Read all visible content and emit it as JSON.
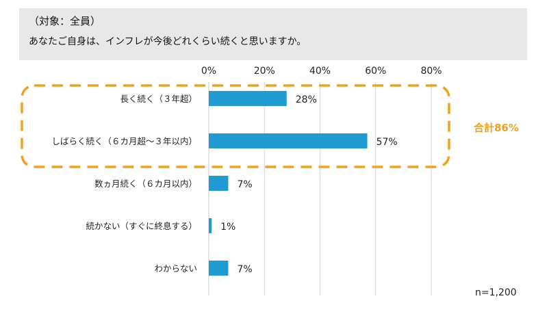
{
  "header": {
    "subject": "（対象：全員）",
    "question": "あなたご自身は、インフレが今後どれくらい続くと思いますか。"
  },
  "chart_data": {
    "type": "bar",
    "orientation": "horizontal",
    "categories": [
      "長く続く（３年超）",
      "しばらく続く（６カ月超～３年以内）",
      "数ヵ月続く（６カ月以内）",
      "続かない（すぐに終息する）",
      "わからない"
    ],
    "values": [
      28,
      57,
      7,
      1,
      7
    ],
    "value_labels": [
      "28%",
      "57%",
      "7%",
      "1%",
      "7%"
    ],
    "xlim": [
      0,
      80
    ],
    "ticks": [
      0,
      20,
      40,
      60,
      80
    ],
    "tick_labels": [
      "0%",
      "20%",
      "40%",
      "60%",
      "80%"
    ],
    "grid": true,
    "bar_color": "#1f9bd1",
    "highlight_color": "#f0a21c",
    "highlight_categories": [
      0,
      1
    ],
    "highlight_label": "合計86%",
    "note": "n=1,200"
  }
}
